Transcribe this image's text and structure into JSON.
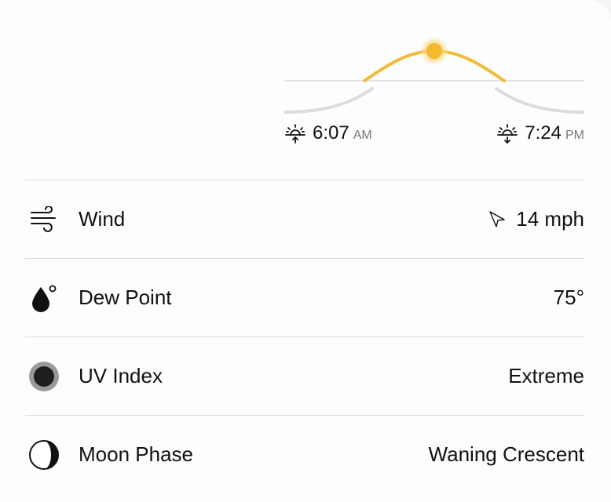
{
  "sun": {
    "sunrise_time": "6:07",
    "sunrise_ampm": "AM",
    "sunset_time": "7:24",
    "sunset_ampm": "PM",
    "arc_color": "#f2bb3c",
    "sun_color": "#f5b82e"
  },
  "rows": [
    {
      "label": "Wind",
      "value": "14 mph",
      "icon": "wind-icon"
    },
    {
      "label": "Dew Point",
      "value": "75°",
      "icon": "dew-point-icon"
    },
    {
      "label": "UV Index",
      "value": "Extreme",
      "icon": "uv-index-icon"
    },
    {
      "label": "Moon Phase",
      "value": "Waning Crescent",
      "icon": "moon-phase-icon"
    }
  ]
}
